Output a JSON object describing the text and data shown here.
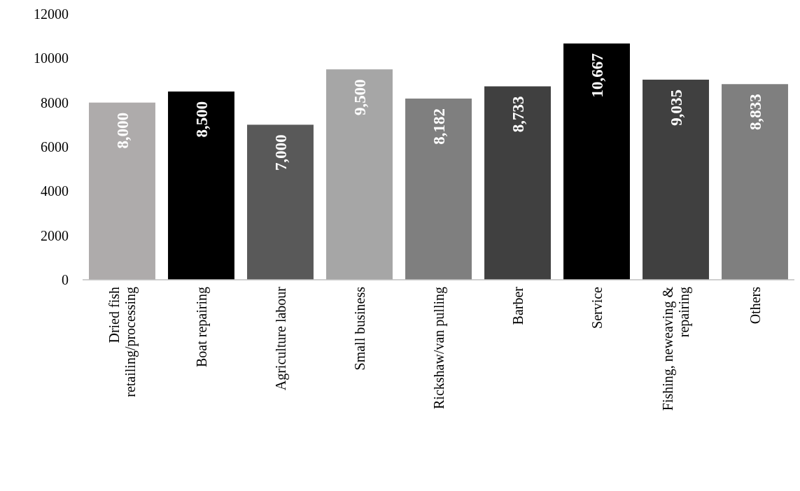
{
  "chart_data": {
    "type": "bar",
    "categories": [
      "Dried fish retailing/processing",
      "Boat repairing",
      "Agriculture labour",
      "Small business",
      "Rickshaw/van pulling",
      "Barber",
      "Service",
      "Fishing, neweaving & repairing",
      "Others"
    ],
    "values": [
      8000,
      8500,
      7000,
      9500,
      8182,
      8733,
      10667,
      9035,
      8833
    ],
    "colors": [
      "#aeabab",
      "#000000",
      "#595959",
      "#a6a6a6",
      "#7f7f7f",
      "#404040",
      "#000000",
      "#404040",
      "#7f7f7f"
    ],
    "value_labels": [
      "8,000",
      "8,500",
      "7,000",
      "9,500",
      "8,182",
      "8,733",
      "10,667",
      "9,035",
      "8,833"
    ],
    "ylim": [
      0,
      12000
    ],
    "yticks": [
      0,
      2000,
      4000,
      6000,
      8000,
      10000,
      12000
    ],
    "grid": false
  }
}
